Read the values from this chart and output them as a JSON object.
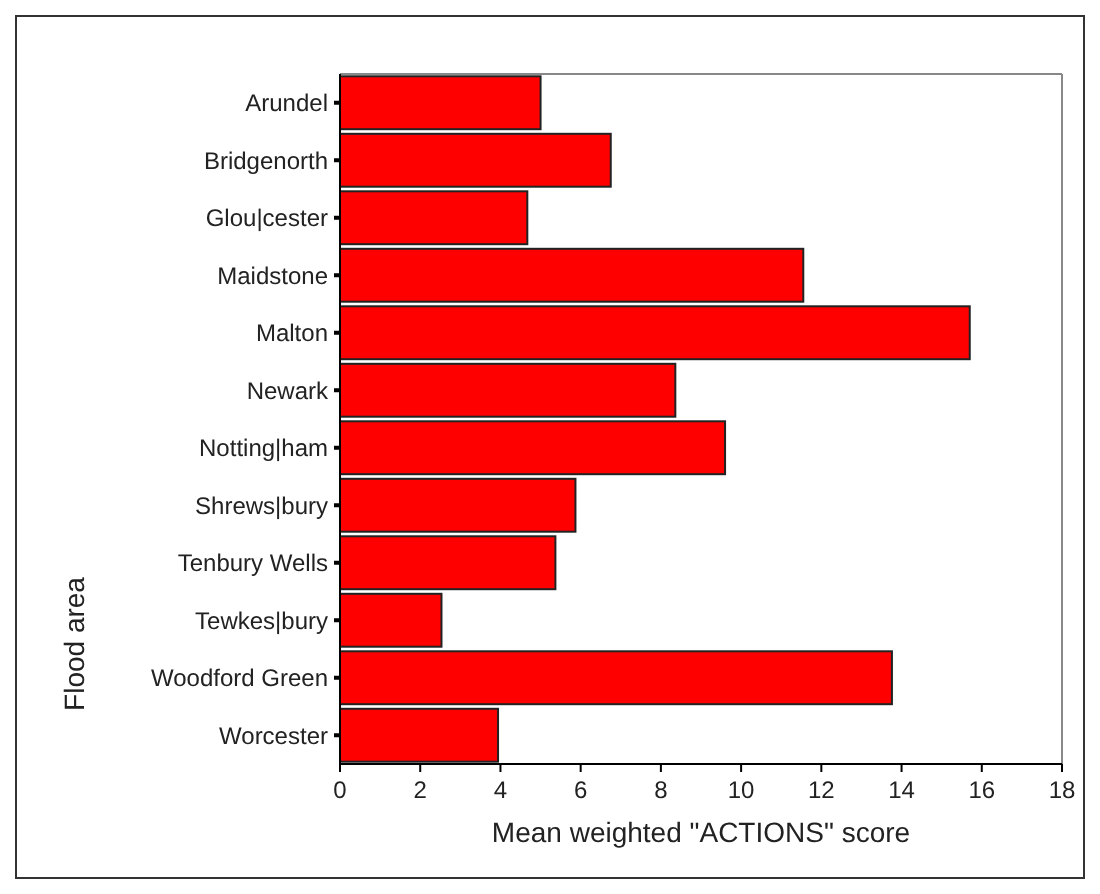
{
  "chart_data": {
    "type": "bar",
    "orientation": "horizontal",
    "xlabel": "Mean weighted \"ACTIONS\" score",
    "ylabel": "Flood area",
    "categories": [
      "Arundel",
      "Bridgenorth",
      "Glou|cester",
      "Maidstone",
      "Malton",
      "Newark",
      "Notting|ham",
      "Shrews|bury",
      "Tenbury Wells",
      "Tewkes|bury",
      "Woodford Green",
      "Worcester"
    ],
    "values": [
      5.0,
      6.75,
      4.67,
      11.55,
      15.7,
      8.36,
      9.6,
      5.87,
      5.37,
      2.53,
      13.76,
      3.94
    ],
    "color": "#ff0000",
    "xlim": [
      0,
      18
    ],
    "xticks": [
      0,
      2,
      4,
      6,
      8,
      10,
      12,
      14,
      16,
      18
    ],
    "grid": false
  }
}
